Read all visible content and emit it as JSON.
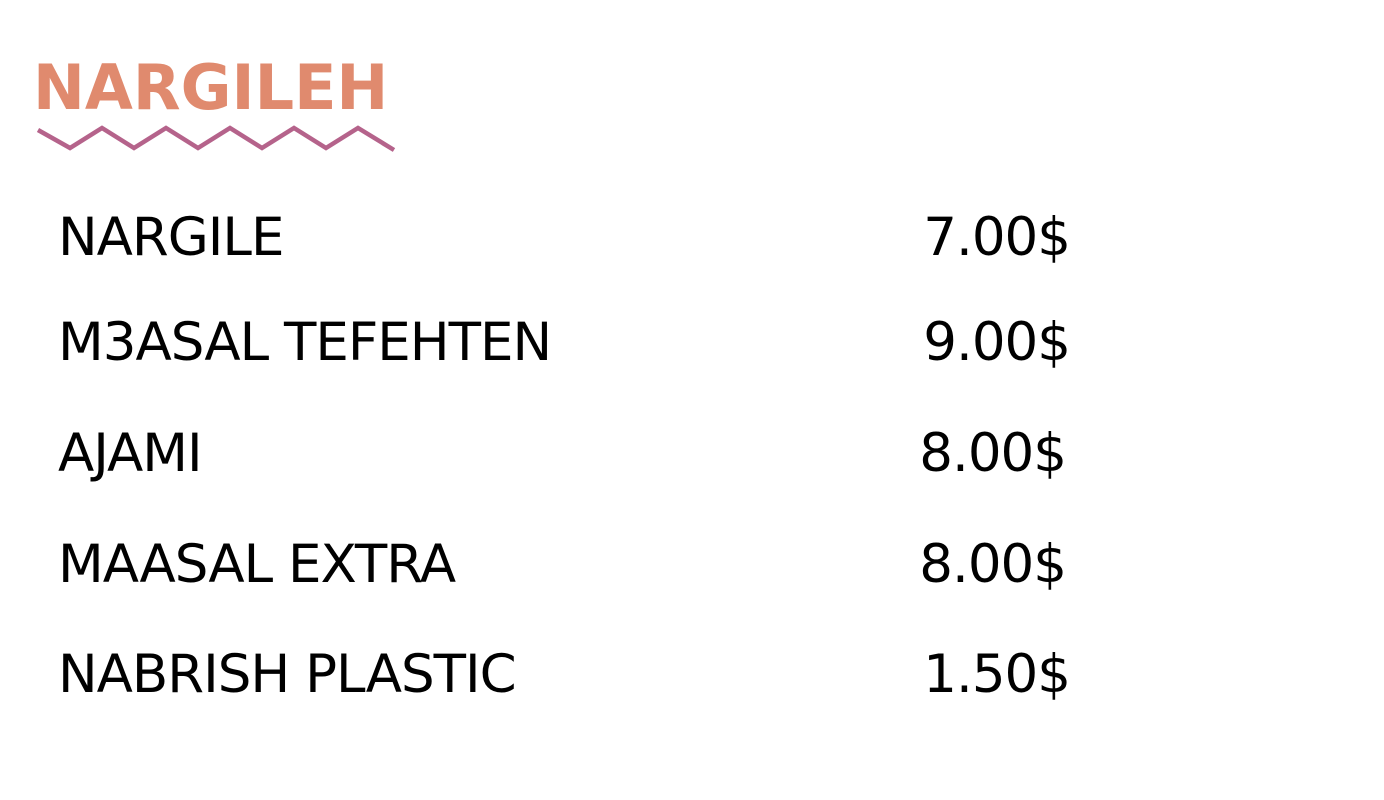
{
  "section": {
    "title": "NARGILEH",
    "title_color": "#E08A6E",
    "underline_color": "#B5638B"
  },
  "items": [
    {
      "name": "NARGILE",
      "price": "7.00$"
    },
    {
      "name": "M3ASAL TEFEHTEN",
      "price": "9.00$"
    },
    {
      "name": "AJAMI",
      "price": "8.00$"
    },
    {
      "name": "MAASAL EXTRA",
      "price": "8.00$"
    },
    {
      "name": "NABRISH PLASTIC",
      "price": "1.50$"
    }
  ]
}
